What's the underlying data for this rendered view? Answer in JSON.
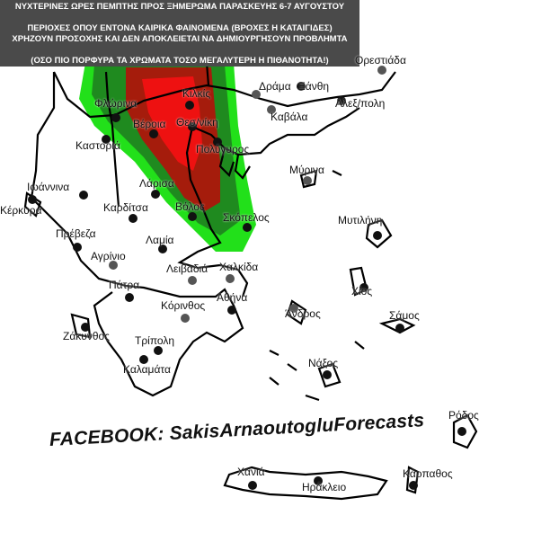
{
  "header": {
    "line1": "ΝΥΧΤΕΡΙΝΕΣ ΩΡΕΣ ΠΕΜΠΤΗΣ ΠΡΟΣ  ΞΗΜΕΡΩΜΑ ΠΑΡΑΣΚΕΥΗΣ  6-7 ΑΥΓΟΥΣΤΟΥ",
    "line2": "ΠΕΡΙΟΧΕΣ ΟΠΟΥ ΕΝΤΟΝΑ ΚΑΙΡΙΚΑ ΦΑΙΝΟΜΕΝΑ (ΒΡΟΧΕΣ Η ΚΑΤΑΙΓΙΔΕΣ)",
    "line3": "ΧΡΗΖΟΥΝ ΠΡΟΣΟΧΗΣ ΚΑΙ ΔΕΝ ΑΠΟΚΛΕΙΕΤΑΙ ΝΑ ΔΗΜΙΟΥΡΓΗΣΟΥΝ ΠΡΟΒΛΗΜΤΑ",
    "line4": "(ΟΣΟ ΠΙΟ ΠΟΡΦΥΡΑ ΤΑ ΧΡΩΜΑΤΑ ΤΟΣΟ ΜΕΓΑΛΥΤΕΡΗ Η ΠΙΘΑΝΟΤΗΤΑ!)"
  },
  "watermark": "FACEBOOK: SakisArnaoutogluForecasts",
  "risk_colors": {
    "low": "#22e01a",
    "medium": "#1f8a1f",
    "high": "#a51c0c",
    "very_high": "#ee1111"
  },
  "cities": [
    {
      "name": "Ορεστιάδα"
    },
    {
      "name": "Δράμα"
    },
    {
      "name": "Ξάνθη"
    },
    {
      "name": "Αλεξ/πολη"
    },
    {
      "name": "Καβάλα"
    },
    {
      "name": "Κιλκίς"
    },
    {
      "name": "Φλώρινα"
    },
    {
      "name": "Βέροια"
    },
    {
      "name": "Θεσ/νίκη"
    },
    {
      "name": "Καστοριά"
    },
    {
      "name": "Πολύγυρος"
    },
    {
      "name": "Μύρινα"
    },
    {
      "name": "Ιωάννινα"
    },
    {
      "name": "Λάρισα"
    },
    {
      "name": "Κέρκυρα"
    },
    {
      "name": "Καρδίτσα"
    },
    {
      "name": "Βόλος"
    },
    {
      "name": "Σκόπελος"
    },
    {
      "name": "Μυτιλήνη"
    },
    {
      "name": "Πρέβεζα"
    },
    {
      "name": "Λαμία"
    },
    {
      "name": "Αγρίνιο"
    },
    {
      "name": "Λειβαδιά"
    },
    {
      "name": "Χαλκίδα"
    },
    {
      "name": "Χίος"
    },
    {
      "name": "Πάτρα"
    },
    {
      "name": "Κόρινθος"
    },
    {
      "name": "Αθήνα"
    },
    {
      "name": "Άνδρος"
    },
    {
      "name": "Σάμος"
    },
    {
      "name": "Ζάκυνθος"
    },
    {
      "name": "Τρίπολη"
    },
    {
      "name": "Νάξος"
    },
    {
      "name": "Καλαμάτα"
    },
    {
      "name": "Ρόδος"
    },
    {
      "name": "Κάρπαθος"
    },
    {
      "name": "Χανιά"
    },
    {
      "name": "Ηράκλειο"
    }
  ]
}
